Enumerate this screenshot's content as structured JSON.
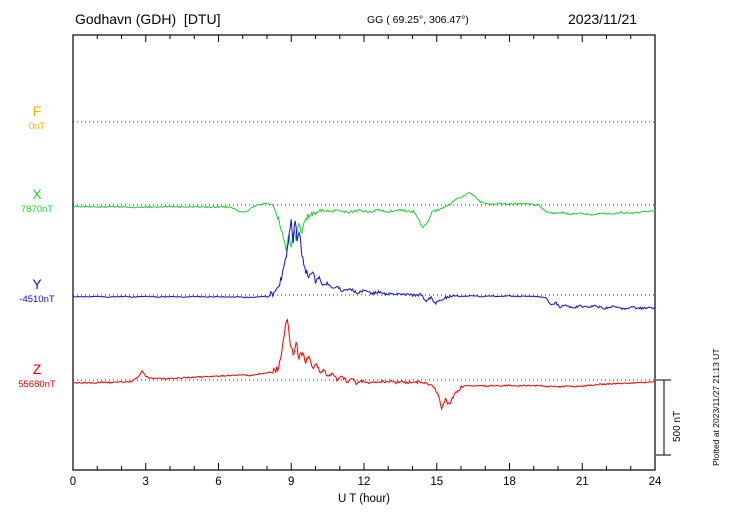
{
  "header": {
    "station": "Godhavn (GDH)  [DTU]",
    "coords": "GG ( 69.25°, 306.47°)",
    "date": "2023/11/21"
  },
  "axis": {
    "xlabel": "U T (hour)",
    "xticks": [
      0,
      3,
      6,
      9,
      12,
      15,
      18,
      21,
      24
    ]
  },
  "scale_bar": {
    "label": "500 nT",
    "nT": 500
  },
  "side_caption": "Plotted at 2023/11/27 21:13 UT",
  "chart_data": {
    "type": "line",
    "title": "Godhavn (GDH) [DTU] magnetogram",
    "xlabel": "U T (hour)",
    "x_range": [
      0,
      24
    ],
    "x_units": "hour UT",
    "y_units": "nT offset from component baseline",
    "scale_bar_nt": 500,
    "components": [
      {
        "id": "F",
        "label": "F",
        "value_label": "0nT",
        "color": "#ffaa00",
        "has_trace": false,
        "noise": [],
        "keypoints": [
          [
            0,
            0
          ],
          [
            24,
            0
          ]
        ]
      },
      {
        "id": "X",
        "label": "X",
        "value_label": "7870nT",
        "color": "#22cc33",
        "has_trace": true,
        "noise": [
          [
            0,
            8.2,
            4
          ],
          [
            8.2,
            10,
            20
          ],
          [
            10,
            15.5,
            8
          ],
          [
            15.5,
            24,
            5
          ]
        ],
        "keypoints": [
          [
            0,
            -13
          ],
          [
            0.5,
            -10
          ],
          [
            1,
            -15
          ],
          [
            1.5,
            -10
          ],
          [
            2,
            -13
          ],
          [
            2.5,
            -18
          ],
          [
            3,
            -12
          ],
          [
            3.5,
            -14
          ],
          [
            4,
            -10
          ],
          [
            4.5,
            -15
          ],
          [
            5,
            -12
          ],
          [
            5.5,
            -15
          ],
          [
            6,
            -12
          ],
          [
            6.5,
            -14
          ],
          [
            6.9,
            -45
          ],
          [
            7.1,
            -50
          ],
          [
            7.4,
            -15
          ],
          [
            7.7,
            5
          ],
          [
            8,
            10
          ],
          [
            8.2,
            0
          ],
          [
            8.4,
            -60
          ],
          [
            8.55,
            -130
          ],
          [
            8.7,
            -220
          ],
          [
            8.8,
            -300
          ],
          [
            8.9,
            -200
          ],
          [
            9,
            -280
          ],
          [
            9.1,
            -150
          ],
          [
            9.2,
            -240
          ],
          [
            9.3,
            -130
          ],
          [
            9.45,
            -180
          ],
          [
            9.6,
            -90
          ],
          [
            9.8,
            -55
          ],
          [
            10,
            -45
          ],
          [
            10.3,
            -35
          ],
          [
            10.6,
            -45
          ],
          [
            11,
            -35
          ],
          [
            11.4,
            -50
          ],
          [
            11.8,
            -35
          ],
          [
            12.2,
            -45
          ],
          [
            12.6,
            -35
          ],
          [
            13,
            -45
          ],
          [
            13.4,
            -35
          ],
          [
            13.8,
            -40
          ],
          [
            14.1,
            -45
          ],
          [
            14.4,
            -150
          ],
          [
            14.6,
            -120
          ],
          [
            14.8,
            -50
          ],
          [
            15,
            -35
          ],
          [
            15.2,
            -20
          ],
          [
            15.5,
            0
          ],
          [
            15.8,
            40
          ],
          [
            16.1,
            60
          ],
          [
            16.35,
            80
          ],
          [
            16.6,
            55
          ],
          [
            16.8,
            20
          ],
          [
            17,
            10
          ],
          [
            17.3,
            5
          ],
          [
            17.6,
            10
          ],
          [
            18,
            5
          ],
          [
            18.4,
            10
          ],
          [
            18.8,
            5
          ],
          [
            19.2,
            0
          ],
          [
            19.5,
            -45
          ],
          [
            19.8,
            -55
          ],
          [
            20.1,
            -50
          ],
          [
            20.5,
            -60
          ],
          [
            21,
            -55
          ],
          [
            21.4,
            -65
          ],
          [
            21.8,
            -55
          ],
          [
            22.2,
            -60
          ],
          [
            22.6,
            -50
          ],
          [
            23,
            -55
          ],
          [
            23.4,
            -48
          ],
          [
            23.7,
            -45
          ],
          [
            24,
            -40
          ]
        ]
      },
      {
        "id": "Y",
        "label": "Y",
        "value_label": "-4510nT",
        "color": "#1111cc",
        "has_trace": true,
        "noise": [
          [
            0,
            8,
            3
          ],
          [
            8,
            10,
            25
          ],
          [
            10,
            15.6,
            9
          ],
          [
            15.6,
            19.5,
            3
          ],
          [
            19.5,
            24,
            7
          ]
        ],
        "keypoints": [
          [
            0,
            -10
          ],
          [
            0.5,
            -13
          ],
          [
            1,
            -10
          ],
          [
            1.5,
            -14
          ],
          [
            2,
            -10
          ],
          [
            2.5,
            -13
          ],
          [
            3,
            -10
          ],
          [
            3.5,
            -13
          ],
          [
            4,
            -11
          ],
          [
            4.5,
            -13
          ],
          [
            5,
            -10
          ],
          [
            5.5,
            -13
          ],
          [
            6,
            -11
          ],
          [
            6.4,
            -15
          ],
          [
            6.8,
            -12
          ],
          [
            7.2,
            -16
          ],
          [
            7.6,
            -12
          ],
          [
            8,
            -8
          ],
          [
            8.3,
            10
          ],
          [
            8.5,
            60
          ],
          [
            8.65,
            140
          ],
          [
            8.8,
            260
          ],
          [
            8.9,
            380
          ],
          [
            9,
            480
          ],
          [
            9.08,
            340
          ],
          [
            9.15,
            530
          ],
          [
            9.25,
            360
          ],
          [
            9.35,
            430
          ],
          [
            9.45,
            260
          ],
          [
            9.55,
            180
          ],
          [
            9.7,
            130
          ],
          [
            9.85,
            170
          ],
          [
            10,
            90
          ],
          [
            10.15,
            120
          ],
          [
            10.3,
            60
          ],
          [
            10.5,
            80
          ],
          [
            10.7,
            40
          ],
          [
            10.9,
            60
          ],
          [
            11.1,
            25
          ],
          [
            11.4,
            45
          ],
          [
            11.7,
            15
          ],
          [
            12,
            30
          ],
          [
            12.3,
            8
          ],
          [
            12.6,
            20
          ],
          [
            12.9,
            5
          ],
          [
            13.2,
            15
          ],
          [
            13.5,
            0
          ],
          [
            13.8,
            8
          ],
          [
            14.1,
            -5
          ],
          [
            14.35,
            5
          ],
          [
            14.55,
            -45
          ],
          [
            14.75,
            -15
          ],
          [
            14.95,
            -55
          ],
          [
            15.15,
            -35
          ],
          [
            15.4,
            -15
          ],
          [
            15.7,
            -5
          ],
          [
            16,
            -10
          ],
          [
            16.4,
            -5
          ],
          [
            16.8,
            -10
          ],
          [
            17.2,
            -6
          ],
          [
            17.6,
            -10
          ],
          [
            18,
            -7
          ],
          [
            18.4,
            -10
          ],
          [
            18.8,
            -8
          ],
          [
            19.2,
            -12
          ],
          [
            19.5,
            -20
          ],
          [
            19.7,
            -70
          ],
          [
            19.9,
            -50
          ],
          [
            20.1,
            -85
          ],
          [
            20.3,
            -60
          ],
          [
            20.6,
            -90
          ],
          [
            20.9,
            -70
          ],
          [
            21.2,
            -85
          ],
          [
            21.5,
            -70
          ],
          [
            21.9,
            -90
          ],
          [
            22.3,
            -78
          ],
          [
            22.7,
            -92
          ],
          [
            23.1,
            -82
          ],
          [
            23.5,
            -90
          ],
          [
            23.8,
            -85
          ],
          [
            24,
            -88
          ]
        ]
      },
      {
        "id": "Z",
        "label": "Z",
        "value_label": "55680nT",
        "color": "#ee0000",
        "has_trace": true,
        "noise": [
          [
            0,
            8.2,
            4
          ],
          [
            8.2,
            10,
            22
          ],
          [
            10,
            16,
            10
          ],
          [
            16,
            24,
            4
          ]
        ],
        "keypoints": [
          [
            0,
            -20
          ],
          [
            0.4,
            -17
          ],
          [
            0.8,
            -20
          ],
          [
            1.2,
            -15
          ],
          [
            1.6,
            -18
          ],
          [
            2,
            -13
          ],
          [
            2.4,
            -10
          ],
          [
            2.7,
            20
          ],
          [
            2.85,
            60
          ],
          [
            3,
            25
          ],
          [
            3.2,
            10
          ],
          [
            3.5,
            15
          ],
          [
            3.8,
            8
          ],
          [
            4.2,
            12
          ],
          [
            4.6,
            15
          ],
          [
            5,
            18
          ],
          [
            5.4,
            22
          ],
          [
            5.8,
            25
          ],
          [
            6.2,
            28
          ],
          [
            6.6,
            32
          ],
          [
            7,
            35
          ],
          [
            7.3,
            30
          ],
          [
            7.6,
            40
          ],
          [
            7.9,
            45
          ],
          [
            8.2,
            55
          ],
          [
            8.45,
            80
          ],
          [
            8.6,
            160
          ],
          [
            8.72,
            300
          ],
          [
            8.82,
            430
          ],
          [
            8.92,
            280
          ],
          [
            9,
            210
          ],
          [
            9.1,
            160
          ],
          [
            9.2,
            260
          ],
          [
            9.3,
            150
          ],
          [
            9.45,
            170
          ],
          [
            9.6,
            120
          ],
          [
            9.75,
            140
          ],
          [
            9.9,
            80
          ],
          [
            10.05,
            100
          ],
          [
            10.2,
            55
          ],
          [
            10.35,
            70
          ],
          [
            10.5,
            20
          ],
          [
            10.7,
            40
          ],
          [
            10.9,
            0
          ],
          [
            11.1,
            25
          ],
          [
            11.3,
            -15
          ],
          [
            11.5,
            10
          ],
          [
            11.7,
            -25
          ],
          [
            11.9,
            -5
          ],
          [
            12.1,
            -20
          ],
          [
            12.3,
            -8
          ],
          [
            12.5,
            -22
          ],
          [
            12.7,
            -10
          ],
          [
            12.9,
            -18
          ],
          [
            13.1,
            -8
          ],
          [
            13.3,
            -16
          ],
          [
            13.6,
            -10
          ],
          [
            13.9,
            -18
          ],
          [
            14.2,
            -12
          ],
          [
            14.5,
            -20
          ],
          [
            14.8,
            -30
          ],
          [
            15.05,
            -90
          ],
          [
            15.2,
            -185
          ],
          [
            15.35,
            -130
          ],
          [
            15.5,
            -165
          ],
          [
            15.65,
            -120
          ],
          [
            15.8,
            -80
          ],
          [
            16,
            -50
          ],
          [
            16.2,
            -38
          ],
          [
            16.5,
            -42
          ],
          [
            16.8,
            -36
          ],
          [
            17.1,
            -42
          ],
          [
            17.4,
            -36
          ],
          [
            17.7,
            -40
          ],
          [
            18,
            -35
          ],
          [
            18.3,
            -40
          ],
          [
            18.6,
            -35
          ],
          [
            18.9,
            -40
          ],
          [
            19.2,
            -36
          ],
          [
            19.5,
            -45
          ],
          [
            19.8,
            -40
          ],
          [
            20.1,
            -46
          ],
          [
            20.4,
            -40
          ],
          [
            20.7,
            -45
          ],
          [
            21,
            -40
          ],
          [
            21.3,
            -35
          ],
          [
            21.6,
            -30
          ],
          [
            21.9,
            -28
          ],
          [
            22.2,
            -25
          ],
          [
            22.5,
            -22
          ],
          [
            22.8,
            -24
          ],
          [
            23.1,
            -20
          ],
          [
            23.4,
            -18
          ],
          [
            23.7,
            -16
          ],
          [
            24,
            -13
          ]
        ]
      }
    ]
  }
}
